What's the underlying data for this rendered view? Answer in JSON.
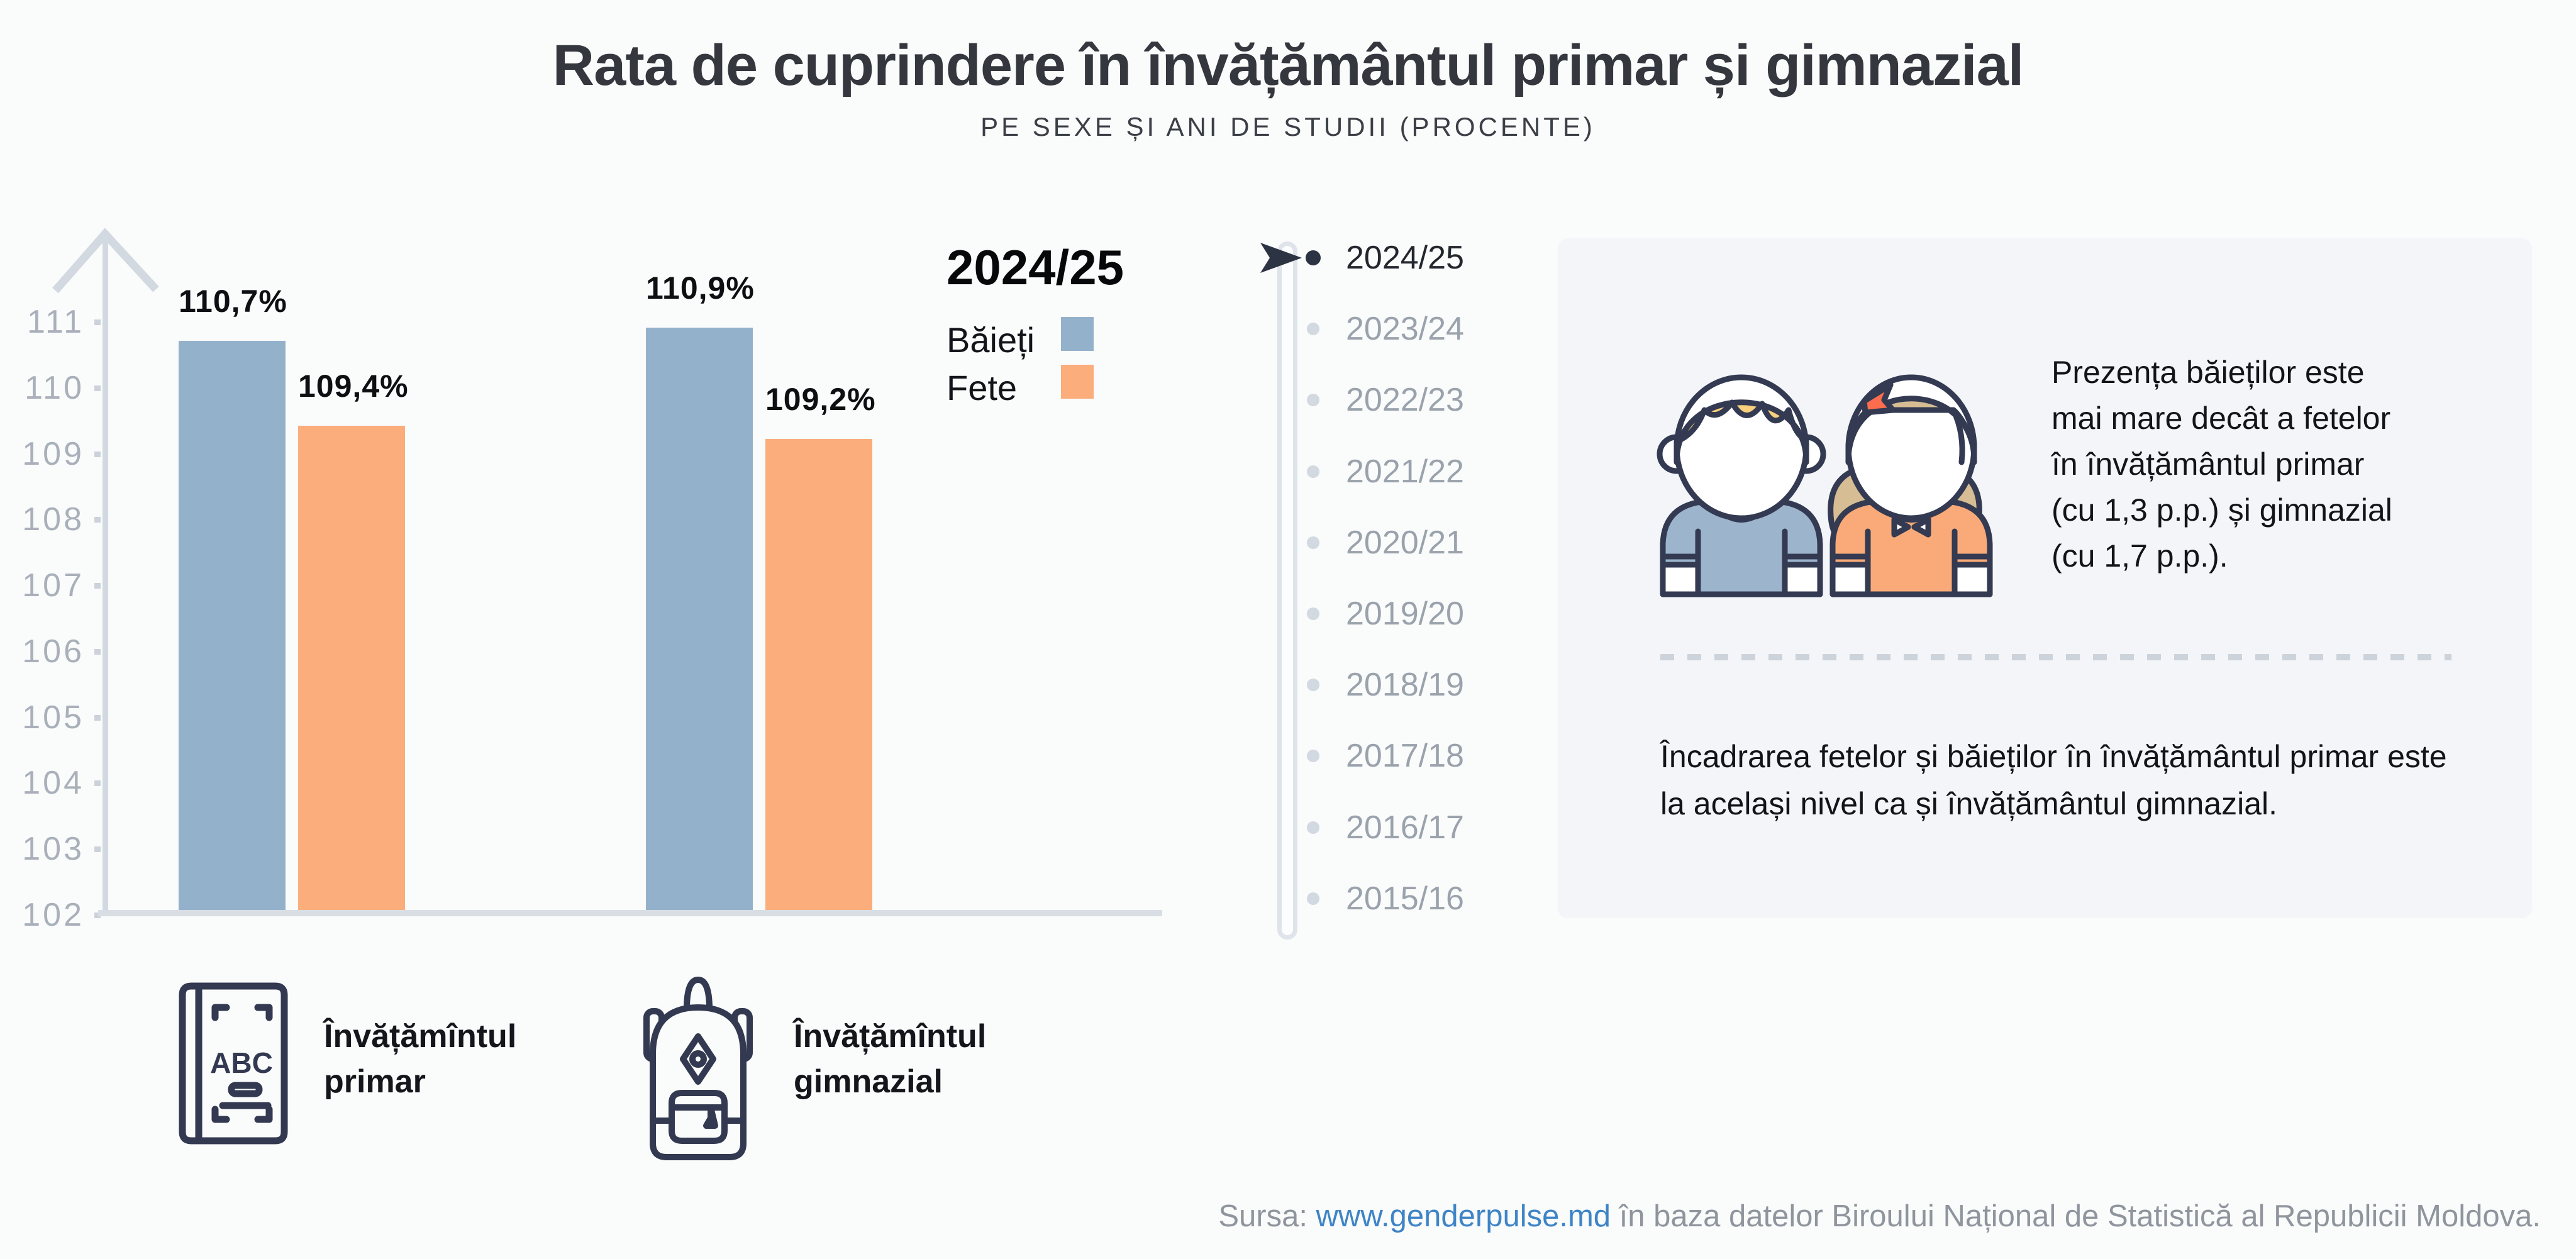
{
  "header": {
    "title": "Rata de cuprindere în învățământul primar și gimnazial",
    "subtitle": "PE SEXE ȘI ANI DE STUDII (PROCENTE)"
  },
  "chart_data": {
    "type": "bar",
    "title": "Rata de cuprindere în învățământul primar și gimnazial, 2024/25",
    "categories": [
      "Învățămîntul primar",
      "Învățămîntul gimnazial"
    ],
    "series": [
      {
        "name": "Băieți",
        "values": [
          110.7,
          110.9
        ],
        "labels": [
          "110,7%",
          "110,9%"
        ],
        "color": "#94b1cb"
      },
      {
        "name": "Fete",
        "values": [
          109.4,
          109.2
        ],
        "labels": [
          "109,4%",
          "109,2%"
        ],
        "color": "#fbad7c"
      }
    ],
    "unit": "%",
    "ylim": [
      102,
      111
    ],
    "yticks": [
      111,
      110,
      109,
      108,
      107,
      106,
      105,
      104,
      103,
      102
    ],
    "grid": false,
    "legend_position": "right-of-bars"
  },
  "legend": {
    "title": "2024/25",
    "items": [
      {
        "label": "Băieți",
        "color": "#94b1cb"
      },
      {
        "label": "Fete",
        "color": "#fbad7c"
      }
    ]
  },
  "timeline": {
    "selected": "2024/25",
    "years": [
      "2024/25",
      "2023/24",
      "2022/23",
      "2021/22",
      "2020/21",
      "2019/20",
      "2018/19",
      "2017/18",
      "2016/17",
      "2015/16"
    ]
  },
  "panel": {
    "highlight_lines": [
      "Prezența băieților este",
      "mai mare decât a fetelor",
      "în învățământul primar",
      "(cu 1,3 p.p.) și gimnazial",
      "(cu 1,7 p.p.)."
    ],
    "note_lines": [
      "Încadrarea fetelor și băieților în învățământul primar este",
      "la același nivel ca și învățământul gimnazial."
    ]
  },
  "categories": [
    {
      "icon": "book-abc-icon",
      "label_lines": [
        "Învățămîntul",
        "primar"
      ],
      "book_text": "ABC"
    },
    {
      "icon": "backpack-icon",
      "label_lines": [
        "Învățămîntul",
        "gimnazial"
      ]
    }
  ],
  "footer": {
    "prefix": "Sursa: ",
    "link": "www.genderpulse.md",
    "suffix": " în baza datelor Biroului Național de Statistică al Republicii Moldova."
  },
  "colors": {
    "boys": "#94b1cb",
    "girls": "#fbad7c",
    "accent_dark": "#2c3342",
    "axis_gray": "#d3d9e0",
    "muted_text": "#9aa2ac",
    "link_blue": "#3e84c6",
    "panel_bg": "#f3f5f8",
    "illustration_outline": "#333a52",
    "boy_hair": "#f8cf7d",
    "girl_hair": "#d7bd93",
    "girl_bow": "#fb6d4e"
  }
}
